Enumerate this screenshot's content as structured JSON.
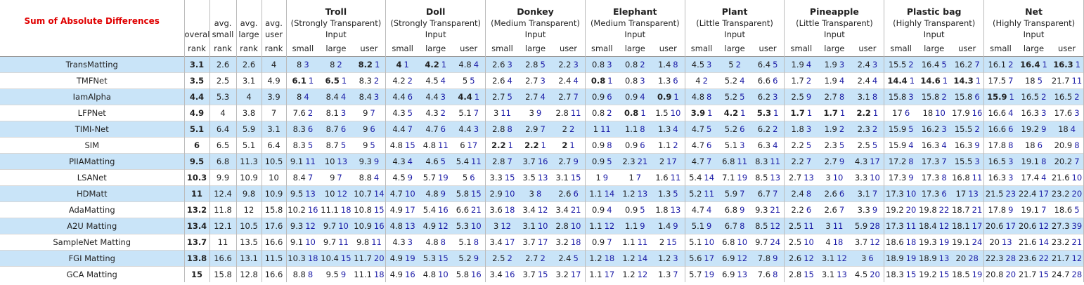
{
  "title": "Sum of Absolute Differences",
  "rank_columns": [
    {
      "top": "overall",
      "bottom": "rank"
    },
    {
      "top": "avg. small",
      "bottom": "rank"
    },
    {
      "top": "avg. large",
      "bottom": "rank"
    },
    {
      "top": "avg. user",
      "bottom": "rank"
    }
  ],
  "images": [
    {
      "name": "Troll",
      "desc": "(Strongly Transparent)",
      "input": "Input"
    },
    {
      "name": "Doll",
      "desc": "(Strongly Transparent)",
      "input": "Input"
    },
    {
      "name": "Donkey",
      "desc": "(Medium Transparent)",
      "input": "Input"
    },
    {
      "name": "Elephant",
      "desc": "(Medium Transparent)",
      "input": "Input"
    },
    {
      "name": "Plant",
      "desc": "(Little Transparent)",
      "input": "Input"
    },
    {
      "name": "Pineapple",
      "desc": "(Little Transparent)",
      "input": "Input"
    },
    {
      "name": "Plastic bag",
      "desc": "(Highly Transparent)",
      "input": "Input"
    },
    {
      "name": "Net",
      "desc": "(Highly Transparent)",
      "input": "Input"
    }
  ],
  "subcolumns": [
    "small",
    "large",
    "user"
  ],
  "rows": [
    {
      "method": "TransMatting",
      "ranks": [
        3.1,
        2.6,
        2.6,
        4
      ],
      "cells": [
        [
          8,
          3
        ],
        [
          8,
          2
        ],
        [
          8.2,
          1
        ],
        [
          4,
          1
        ],
        [
          4.2,
          1
        ],
        [
          4.8,
          4
        ],
        [
          2.6,
          3
        ],
        [
          2.8,
          5
        ],
        [
          2.2,
          3
        ],
        [
          0.8,
          3
        ],
        [
          0.8,
          2
        ],
        [
          1.4,
          8
        ],
        [
          4.5,
          3
        ],
        [
          5,
          2
        ],
        [
          6.4,
          5
        ],
        [
          1.9,
          4
        ],
        [
          1.9,
          3
        ],
        [
          2.4,
          3
        ],
        [
          15.5,
          2
        ],
        [
          16.4,
          5
        ],
        [
          16.2,
          7
        ],
        [
          16.1,
          2
        ],
        [
          16.4,
          1
        ],
        [
          16.3,
          1
        ]
      ],
      "bold": [
        2,
        3,
        4,
        22,
        23
      ]
    },
    {
      "method": "TMFNet",
      "ranks": [
        3.5,
        2.5,
        3.1,
        4.9
      ],
      "cells": [
        [
          6.1,
          1
        ],
        [
          6.5,
          1
        ],
        [
          8.3,
          2
        ],
        [
          4.2,
          2
        ],
        [
          4.5,
          4
        ],
        [
          5,
          5
        ],
        [
          2.6,
          4
        ],
        [
          2.7,
          3
        ],
        [
          2.4,
          4
        ],
        [
          0.8,
          1
        ],
        [
          0.8,
          3
        ],
        [
          1.3,
          6
        ],
        [
          4,
          2
        ],
        [
          5.2,
          4
        ],
        [
          6.6,
          6
        ],
        [
          1.7,
          2
        ],
        [
          1.9,
          4
        ],
        [
          2.4,
          4
        ],
        [
          14.4,
          1
        ],
        [
          14.6,
          1
        ],
        [
          14.3,
          1
        ],
        [
          17.5,
          7
        ],
        [
          18,
          5
        ],
        [
          21.7,
          11
        ]
      ],
      "bold": [
        0,
        1,
        9,
        18,
        19,
        20
      ]
    },
    {
      "method": "IamAlpha",
      "ranks": [
        4.4,
        5.3,
        4,
        3.9
      ],
      "cells": [
        [
          8,
          4
        ],
        [
          8.4,
          4
        ],
        [
          8.4,
          3
        ],
        [
          4.4,
          6
        ],
        [
          4.4,
          3
        ],
        [
          4.4,
          1
        ],
        [
          2.7,
          5
        ],
        [
          2.7,
          4
        ],
        [
          2.7,
          7
        ],
        [
          0.9,
          6
        ],
        [
          0.9,
          4
        ],
        [
          0.9,
          1
        ],
        [
          4.8,
          8
        ],
        [
          5.2,
          5
        ],
        [
          6.2,
          3
        ],
        [
          2.5,
          9
        ],
        [
          2.7,
          8
        ],
        [
          3.1,
          8
        ],
        [
          15.8,
          3
        ],
        [
          15.8,
          2
        ],
        [
          15.8,
          6
        ],
        [
          15.9,
          1
        ],
        [
          16.5,
          2
        ],
        [
          16.5,
          2
        ]
      ],
      "bold": [
        5,
        11,
        21
      ]
    },
    {
      "method": "LFPNet",
      "ranks": [
        4.9,
        4,
        3.8,
        7
      ],
      "cells": [
        [
          7.6,
          2
        ],
        [
          8.1,
          3
        ],
        [
          9,
          7
        ],
        [
          4.3,
          5
        ],
        [
          4.3,
          2
        ],
        [
          5.1,
          7
        ],
        [
          3,
          11
        ],
        [
          3,
          9
        ],
        [
          2.8,
          11
        ],
        [
          0.8,
          2
        ],
        [
          0.8,
          1
        ],
        [
          1.5,
          10
        ],
        [
          3.9,
          1
        ],
        [
          4.2,
          1
        ],
        [
          5.3,
          1
        ],
        [
          1.7,
          1
        ],
        [
          1.7,
          1
        ],
        [
          2.2,
          1
        ],
        [
          17,
          6
        ],
        [
          18,
          10
        ],
        [
          17.9,
          16
        ],
        [
          16.6,
          4
        ],
        [
          16.3,
          3
        ],
        [
          17.6,
          3
        ]
      ],
      "bold": [
        10,
        12,
        13,
        14,
        15,
        16,
        17
      ]
    },
    {
      "method": "TIMI-Net",
      "ranks": [
        5.1,
        6.4,
        5.9,
        3.1
      ],
      "cells": [
        [
          8.3,
          6
        ],
        [
          8.7,
          6
        ],
        [
          9,
          6
        ],
        [
          4.4,
          7
        ],
        [
          4.7,
          6
        ],
        [
          4.4,
          3
        ],
        [
          2.8,
          8
        ],
        [
          2.9,
          7
        ],
        [
          2,
          2
        ],
        [
          1,
          11
        ],
        [
          1.1,
          8
        ],
        [
          1.3,
          4
        ],
        [
          4.7,
          5
        ],
        [
          5.2,
          6
        ],
        [
          6.2,
          2
        ],
        [
          1.8,
          3
        ],
        [
          1.9,
          2
        ],
        [
          2.3,
          2
        ],
        [
          15.9,
          5
        ],
        [
          16.2,
          3
        ],
        [
          15.5,
          2
        ],
        [
          16.6,
          6
        ],
        [
          19.2,
          9
        ],
        [
          18,
          4
        ]
      ]
    },
    {
      "method": "SIM",
      "ranks": [
        6,
        6.5,
        5.1,
        6.4
      ],
      "cells": [
        [
          8.3,
          5
        ],
        [
          8.7,
          5
        ],
        [
          9,
          5
        ],
        [
          4.8,
          15
        ],
        [
          4.8,
          11
        ],
        [
          6,
          17
        ],
        [
          2.2,
          1
        ],
        [
          2.2,
          1
        ],
        [
          2,
          1
        ],
        [
          0.9,
          8
        ],
        [
          0.9,
          6
        ],
        [
          1.1,
          2
        ],
        [
          4.7,
          6
        ],
        [
          5.1,
          3
        ],
        [
          6.3,
          4
        ],
        [
          2.2,
          5
        ],
        [
          2.3,
          5
        ],
        [
          2.5,
          5
        ],
        [
          15.9,
          4
        ],
        [
          16.3,
          4
        ],
        [
          16.3,
          9
        ],
        [
          17.8,
          8
        ],
        [
          18,
          6
        ],
        [
          20.9,
          8
        ]
      ],
      "bold": [
        6,
        7,
        8
      ]
    },
    {
      "method": "PIIAMatting",
      "ranks": [
        9.5,
        6.8,
        11.3,
        10.5
      ],
      "cells": [
        [
          9.1,
          11
        ],
        [
          10,
          13
        ],
        [
          9.3,
          9
        ],
        [
          4.3,
          4
        ],
        [
          4.6,
          5
        ],
        [
          5.4,
          11
        ],
        [
          2.8,
          7
        ],
        [
          3.7,
          16
        ],
        [
          2.7,
          9
        ],
        [
          0.9,
          5
        ],
        [
          2.3,
          21
        ],
        [
          2,
          17
        ],
        [
          4.7,
          7
        ],
        [
          6.8,
          11
        ],
        [
          8.3,
          11
        ],
        [
          2.2,
          7
        ],
        [
          2.7,
          9
        ],
        [
          4.3,
          17
        ],
        [
          17.2,
          8
        ],
        [
          17.3,
          7
        ],
        [
          15.5,
          3
        ],
        [
          16.5,
          3
        ],
        [
          19.1,
          8
        ],
        [
          20.2,
          7
        ]
      ]
    },
    {
      "method": "LSANet",
      "ranks": [
        10.3,
        9.9,
        10.9,
        10
      ],
      "cells": [
        [
          8.4,
          7
        ],
        [
          9,
          7
        ],
        [
          8.8,
          4
        ],
        [
          4.5,
          9
        ],
        [
          5.7,
          19
        ],
        [
          5,
          6
        ],
        [
          3.3,
          15
        ],
        [
          3.5,
          13
        ],
        [
          3.1,
          15
        ],
        [
          1,
          9
        ],
        [
          1,
          7
        ],
        [
          1.6,
          11
        ],
        [
          5.4,
          14
        ],
        [
          7.1,
          19
        ],
        [
          8.5,
          13
        ],
        [
          2.7,
          13
        ],
        [
          3,
          10
        ],
        [
          3.3,
          10
        ],
        [
          17.3,
          9
        ],
        [
          17.3,
          8
        ],
        [
          16.8,
          11
        ],
        [
          16.3,
          3
        ],
        [
          17.4,
          4
        ],
        [
          21.6,
          10
        ]
      ]
    },
    {
      "method": "HDMatt",
      "ranks": [
        11,
        12.4,
        9.8,
        10.9
      ],
      "cells": [
        [
          9.5,
          13
        ],
        [
          10,
          12
        ],
        [
          10.7,
          14
        ],
        [
          4.7,
          10
        ],
        [
          4.8,
          9
        ],
        [
          5.8,
          15
        ],
        [
          2.9,
          10
        ],
        [
          3,
          8
        ],
        [
          2.6,
          6
        ],
        [
          1.1,
          14
        ],
        [
          1.2,
          13
        ],
        [
          1.3,
          5
        ],
        [
          5.2,
          11
        ],
        [
          5.9,
          7
        ],
        [
          6.7,
          7
        ],
        [
          2.4,
          8
        ],
        [
          2.6,
          6
        ],
        [
          3.1,
          7
        ],
        [
          17.3,
          10
        ],
        [
          17.3,
          6
        ],
        [
          17,
          13
        ],
        [
          21.5,
          23
        ],
        [
          22.4,
          17
        ],
        [
          23.2,
          20
        ]
      ]
    },
    {
      "method": "AdaMatting",
      "ranks": [
        13.2,
        11.8,
        12,
        15.8
      ],
      "cells": [
        [
          10.2,
          16
        ],
        [
          11.1,
          18
        ],
        [
          10.8,
          15
        ],
        [
          4.9,
          17
        ],
        [
          5.4,
          16
        ],
        [
          6.6,
          21
        ],
        [
          3.6,
          18
        ],
        [
          3.4,
          12
        ],
        [
          3.4,
          21
        ],
        [
          0.9,
          4
        ],
        [
          0.9,
          5
        ],
        [
          1.8,
          13
        ],
        [
          4.7,
          4
        ],
        [
          6.8,
          9
        ],
        [
          9.3,
          21
        ],
        [
          2.2,
          6
        ],
        [
          2.6,
          7
        ],
        [
          3.3,
          9
        ],
        [
          19.2,
          20
        ],
        [
          19.8,
          22
        ],
        [
          18.7,
          21
        ],
        [
          17.8,
          9
        ],
        [
          19.1,
          7
        ],
        [
          18.6,
          5
        ]
      ]
    },
    {
      "method": "A2U Matting",
      "ranks": [
        13.4,
        12.1,
        10.5,
        17.6
      ],
      "cells": [
        [
          9.3,
          12
        ],
        [
          9.7,
          10
        ],
        [
          10.9,
          16
        ],
        [
          4.8,
          13
        ],
        [
          4.9,
          12
        ],
        [
          5.3,
          10
        ],
        [
          3,
          12
        ],
        [
          3.1,
          10
        ],
        [
          2.8,
          10
        ],
        [
          1.1,
          12
        ],
        [
          1.1,
          9
        ],
        [
          1.4,
          9
        ],
        [
          5.1,
          9
        ],
        [
          6.7,
          8
        ],
        [
          8.5,
          12
        ],
        [
          2.5,
          11
        ],
        [
          3,
          11
        ],
        [
          5.9,
          28
        ],
        [
          17.3,
          11
        ],
        [
          18.4,
          12
        ],
        [
          18.1,
          17
        ],
        [
          20.6,
          17
        ],
        [
          20.6,
          12
        ],
        [
          27.3,
          39
        ]
      ]
    },
    {
      "method": "SampleNet Matting",
      "ranks": [
        13.7,
        11,
        13.5,
        16.6
      ],
      "cells": [
        [
          9.1,
          10
        ],
        [
          9.7,
          11
        ],
        [
          9.8,
          11
        ],
        [
          4.3,
          3
        ],
        [
          4.8,
          8
        ],
        [
          5.1,
          8
        ],
        [
          3.4,
          17
        ],
        [
          3.7,
          17
        ],
        [
          3.2,
          18
        ],
        [
          0.9,
          7
        ],
        [
          1.1,
          11
        ],
        [
          2,
          15
        ],
        [
          5.1,
          10
        ],
        [
          6.8,
          10
        ],
        [
          9.7,
          24
        ],
        [
          2.5,
          10
        ],
        [
          4,
          18
        ],
        [
          3.7,
          12
        ],
        [
          18.6,
          18
        ],
        [
          19.3,
          19
        ],
        [
          19.1,
          24
        ],
        [
          20,
          13
        ],
        [
          21.6,
          14
        ],
        [
          23.2,
          21
        ]
      ]
    },
    {
      "method": "FGI Matting",
      "ranks": [
        13.8,
        16.6,
        13.1,
        11.5
      ],
      "cells": [
        [
          10.3,
          18
        ],
        [
          10.4,
          15
        ],
        [
          11.7,
          20
        ],
        [
          4.9,
          19
        ],
        [
          5.3,
          15
        ],
        [
          5.2,
          9
        ],
        [
          2.5,
          2
        ],
        [
          2.7,
          2
        ],
        [
          2.4,
          5
        ],
        [
          1.2,
          18
        ],
        [
          1.2,
          14
        ],
        [
          1.2,
          3
        ],
        [
          5.6,
          17
        ],
        [
          6.9,
          12
        ],
        [
          7.8,
          9
        ],
        [
          2.6,
          12
        ],
        [
          3.1,
          12
        ],
        [
          3,
          6
        ],
        [
          18.9,
          19
        ],
        [
          18.9,
          13
        ],
        [
          20,
          28
        ],
        [
          22.3,
          28
        ],
        [
          23.6,
          22
        ],
        [
          21.7,
          12
        ]
      ]
    },
    {
      "method": "GCA Matting",
      "ranks": [
        15,
        15.8,
        12.8,
        16.6
      ],
      "cells": [
        [
          8.8,
          8
        ],
        [
          9.5,
          9
        ],
        [
          11.1,
          18
        ],
        [
          4.9,
          16
        ],
        [
          4.8,
          10
        ],
        [
          5.8,
          16
        ],
        [
          3.4,
          16
        ],
        [
          3.7,
          15
        ],
        [
          3.2,
          17
        ],
        [
          1.1,
          17
        ],
        [
          1.2,
          12
        ],
        [
          1.3,
          7
        ],
        [
          5.7,
          19
        ],
        [
          6.9,
          13
        ],
        [
          7.6,
          8
        ],
        [
          2.8,
          15
        ],
        [
          3.1,
          13
        ],
        [
          4.5,
          20
        ],
        [
          18.3,
          15
        ],
        [
          19.2,
          15
        ],
        [
          18.5,
          19
        ],
        [
          20.8,
          20
        ],
        [
          21.7,
          15
        ],
        [
          24.7,
          28
        ]
      ]
    }
  ]
}
